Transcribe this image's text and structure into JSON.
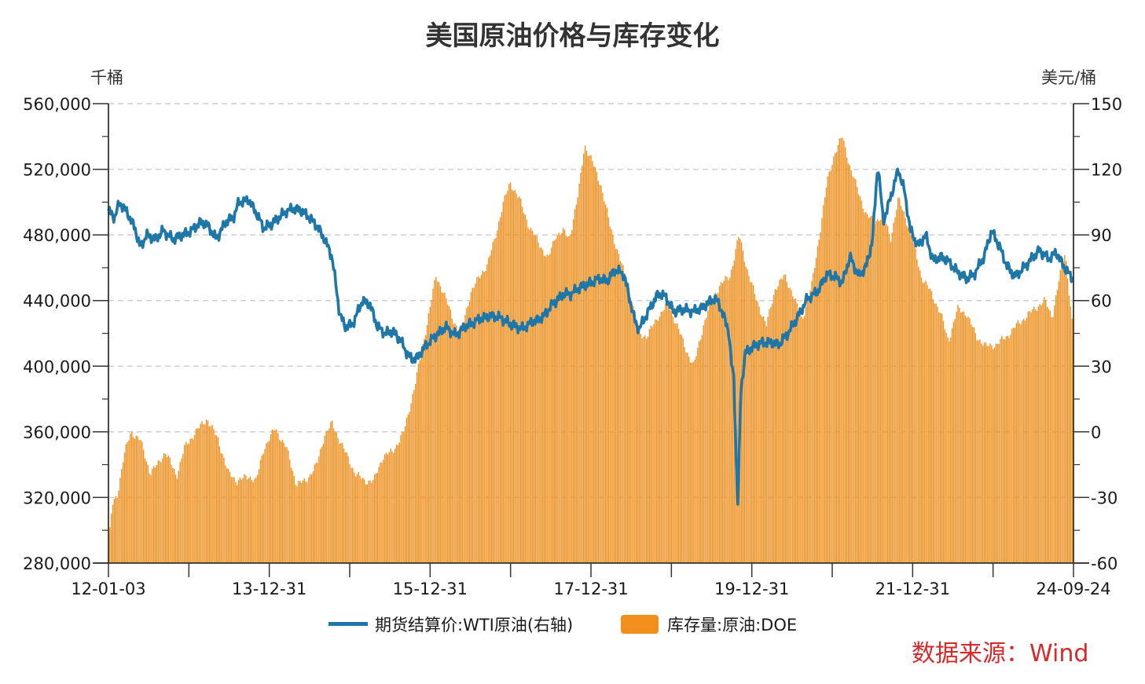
{
  "chart_data": {
    "type": "bar+line",
    "title": "美国原油价格与库存变化",
    "left_unit": "千桶",
    "right_unit": "美元/桶",
    "left_axis": {
      "min": 280000,
      "max": 560000,
      "ticks": [
        "560,000",
        "520,000",
        "480,000",
        "440,000",
        "400,000",
        "360,000",
        "320,000",
        "280,000"
      ]
    },
    "right_axis": {
      "min": -60,
      "max": 150,
      "ticks": [
        "150",
        "120",
        "90",
        "60",
        "30",
        "0",
        "-30",
        "-60"
      ]
    },
    "x_tick_labels": [
      "12-01-03",
      "13-12-31",
      "15-12-31",
      "17-12-31",
      "19-12-31",
      "21-12-31",
      "24-09-24"
    ],
    "x_range": [
      2012.0,
      2024.73
    ],
    "grid": true,
    "legend_position": "bottom",
    "series": [
      {
        "name": "库存量:原油:DOE",
        "kind": "bar",
        "axis": "left",
        "color": "#f28e1c",
        "points": [
          [
            2012.0,
            290000
          ],
          [
            2012.05,
            315000
          ],
          [
            2012.12,
            322000
          ],
          [
            2012.2,
            345000
          ],
          [
            2012.3,
            360000
          ],
          [
            2012.42,
            355000
          ],
          [
            2012.55,
            335000
          ],
          [
            2012.65,
            340000
          ],
          [
            2012.75,
            348000
          ],
          [
            2012.9,
            333000
          ],
          [
            2013.0,
            350000
          ],
          [
            2013.15,
            360000
          ],
          [
            2013.3,
            368000
          ],
          [
            2013.45,
            355000
          ],
          [
            2013.58,
            335000
          ],
          [
            2013.7,
            330000
          ],
          [
            2013.85,
            333000
          ],
          [
            2013.95,
            330000
          ],
          [
            2014.05,
            350000
          ],
          [
            2014.2,
            362000
          ],
          [
            2014.35,
            350000
          ],
          [
            2014.48,
            328000
          ],
          [
            2014.6,
            330000
          ],
          [
            2014.75,
            340000
          ],
          [
            2014.85,
            358000
          ],
          [
            2014.95,
            365000
          ],
          [
            2015.1,
            350000
          ],
          [
            2015.25,
            335000
          ],
          [
            2015.38,
            330000
          ],
          [
            2015.5,
            330000
          ],
          [
            2015.62,
            345000
          ],
          [
            2015.75,
            348000
          ],
          [
            2015.9,
            360000
          ],
          [
            2016.05,
            390000
          ],
          [
            2016.2,
            425000
          ],
          [
            2016.32,
            455000
          ],
          [
            2016.42,
            445000
          ],
          [
            2016.55,
            428000
          ],
          [
            2016.65,
            420000
          ],
          [
            2016.78,
            445000
          ],
          [
            2016.9,
            455000
          ],
          [
            2017.0,
            462000
          ],
          [
            2017.1,
            478000
          ],
          [
            2017.2,
            498000
          ],
          [
            2017.3,
            512000
          ],
          [
            2017.42,
            502000
          ],
          [
            2017.55,
            485000
          ],
          [
            2017.68,
            475000
          ],
          [
            2017.8,
            465000
          ],
          [
            2017.9,
            480000
          ],
          [
            2018.0,
            482000
          ],
          [
            2018.08,
            478000
          ],
          [
            2018.2,
            505000
          ],
          [
            2018.28,
            535000
          ],
          [
            2018.38,
            525000
          ],
          [
            2018.5,
            510000
          ],
          [
            2018.62,
            485000
          ],
          [
            2018.75,
            465000
          ],
          [
            2018.88,
            445000
          ],
          [
            2019.0,
            420000
          ],
          [
            2019.1,
            418000
          ],
          [
            2019.25,
            430000
          ],
          [
            2019.38,
            438000
          ],
          [
            2019.5,
            425000
          ],
          [
            2019.62,
            410000
          ],
          [
            2019.72,
            400000
          ],
          [
            2019.85,
            425000
          ],
          [
            2019.95,
            440000
          ],
          [
            2020.08,
            450000
          ],
          [
            2020.2,
            455000
          ],
          [
            2020.32,
            480000
          ],
          [
            2020.42,
            460000
          ],
          [
            2020.55,
            440000
          ],
          [
            2020.68,
            425000
          ],
          [
            2020.8,
            448000
          ],
          [
            2020.92,
            455000
          ],
          [
            2021.02,
            445000
          ],
          [
            2021.15,
            428000
          ],
          [
            2021.28,
            450000
          ],
          [
            2021.38,
            480000
          ],
          [
            2021.48,
            512000
          ],
          [
            2021.58,
            530000
          ],
          [
            2021.68,
            540000
          ],
          [
            2021.78,
            522000
          ],
          [
            2021.9,
            505000
          ],
          [
            2022.0,
            492000
          ],
          [
            2022.1,
            488000
          ],
          [
            2022.22,
            492000
          ],
          [
            2022.32,
            478000
          ],
          [
            2022.42,
            502000
          ],
          [
            2022.52,
            490000
          ],
          [
            2022.62,
            475000
          ],
          [
            2022.72,
            455000
          ],
          [
            2022.85,
            445000
          ],
          [
            2022.98,
            432000
          ],
          [
            2023.08,
            415000
          ],
          [
            2023.2,
            435000
          ],
          [
            2023.32,
            432000
          ],
          [
            2023.45,
            418000
          ],
          [
            2023.58,
            412000
          ],
          [
            2023.7,
            413000
          ],
          [
            2023.85,
            418000
          ],
          [
            2023.98,
            425000
          ],
          [
            2024.1,
            430000
          ],
          [
            2024.22,
            435000
          ],
          [
            2024.35,
            440000
          ],
          [
            2024.45,
            430000
          ],
          [
            2024.55,
            455000
          ],
          [
            2024.62,
            470000
          ],
          [
            2024.73,
            418000
          ]
        ]
      },
      {
        "name": "期货结算价:WTI原油(右轴)",
        "kind": "line",
        "axis": "right",
        "color": "#1f77a8",
        "points": [
          [
            2012.0,
            101
          ],
          [
            2012.08,
            98
          ],
          [
            2012.15,
            105
          ],
          [
            2012.25,
            100
          ],
          [
            2012.35,
            93
          ],
          [
            2012.42,
            84
          ],
          [
            2012.5,
            90
          ],
          [
            2012.62,
            88
          ],
          [
            2012.72,
            92
          ],
          [
            2012.85,
            88
          ],
          [
            2012.98,
            90
          ],
          [
            2013.1,
            92
          ],
          [
            2013.22,
            96
          ],
          [
            2013.32,
            94
          ],
          [
            2013.42,
            88
          ],
          [
            2013.55,
            96
          ],
          [
            2013.65,
            98
          ],
          [
            2013.72,
            105
          ],
          [
            2013.85,
            106
          ],
          [
            2013.95,
            100
          ],
          [
            2014.05,
            93
          ],
          [
            2014.15,
            95
          ],
          [
            2014.25,
            98
          ],
          [
            2014.35,
            101
          ],
          [
            2014.45,
            102
          ],
          [
            2014.55,
            101
          ],
          [
            2014.65,
            98
          ],
          [
            2014.75,
            94
          ],
          [
            2014.85,
            88
          ],
          [
            2014.95,
            80
          ],
          [
            2015.05,
            54
          ],
          [
            2015.12,
            48
          ],
          [
            2015.22,
            49
          ],
          [
            2015.35,
            60
          ],
          [
            2015.45,
            58
          ],
          [
            2015.55,
            48
          ],
          [
            2015.65,
            45
          ],
          [
            2015.75,
            46
          ],
          [
            2015.85,
            42
          ],
          [
            2015.92,
            37
          ],
          [
            2016.0,
            33
          ],
          [
            2016.08,
            34
          ],
          [
            2016.2,
            40
          ],
          [
            2016.32,
            44
          ],
          [
            2016.45,
            48
          ],
          [
            2016.58,
            44
          ],
          [
            2016.7,
            48
          ],
          [
            2016.82,
            50
          ],
          [
            2016.92,
            52
          ],
          [
            2017.05,
            53
          ],
          [
            2017.18,
            52
          ],
          [
            2017.32,
            49
          ],
          [
            2017.45,
            47
          ],
          [
            2017.58,
            50
          ],
          [
            2017.72,
            52
          ],
          [
            2017.85,
            58
          ],
          [
            2018.0,
            63
          ],
          [
            2018.1,
            63
          ],
          [
            2018.22,
            66
          ],
          [
            2018.35,
            68
          ],
          [
            2018.48,
            70
          ],
          [
            2018.58,
            69
          ],
          [
            2018.68,
            74
          ],
          [
            2018.8,
            72
          ],
          [
            2018.88,
            60
          ],
          [
            2018.95,
            50
          ],
          [
            2019.0,
            47
          ],
          [
            2019.12,
            55
          ],
          [
            2019.25,
            63
          ],
          [
            2019.35,
            62
          ],
          [
            2019.45,
            55
          ],
          [
            2019.58,
            56
          ],
          [
            2019.72,
            55
          ],
          [
            2019.85,
            57
          ],
          [
            2019.98,
            61
          ],
          [
            2020.05,
            59
          ],
          [
            2020.12,
            52
          ],
          [
            2020.18,
            47
          ],
          [
            2020.22,
            30
          ],
          [
            2020.25,
            25
          ],
          [
            2020.3,
            -37
          ],
          [
            2020.34,
            18
          ],
          [
            2020.4,
            36
          ],
          [
            2020.55,
            40
          ],
          [
            2020.7,
            41
          ],
          [
            2020.85,
            40
          ],
          [
            2020.98,
            46
          ],
          [
            2021.1,
            53
          ],
          [
            2021.22,
            61
          ],
          [
            2021.35,
            64
          ],
          [
            2021.48,
            72
          ],
          [
            2021.58,
            71
          ],
          [
            2021.68,
            68
          ],
          [
            2021.78,
            80
          ],
          [
            2021.9,
            71
          ],
          [
            2022.0,
            76
          ],
          [
            2022.08,
            88
          ],
          [
            2022.15,
            123
          ],
          [
            2022.22,
            96
          ],
          [
            2022.3,
            105
          ],
          [
            2022.42,
            120
          ],
          [
            2022.5,
            110
          ],
          [
            2022.58,
            92
          ],
          [
            2022.68,
            85
          ],
          [
            2022.78,
            90
          ],
          [
            2022.88,
            78
          ],
          [
            2022.98,
            80
          ],
          [
            2023.08,
            78
          ],
          [
            2023.2,
            73
          ],
          [
            2023.32,
            70
          ],
          [
            2023.42,
            72
          ],
          [
            2023.55,
            80
          ],
          [
            2023.65,
            92
          ],
          [
            2023.75,
            85
          ],
          [
            2023.85,
            76
          ],
          [
            2023.95,
            71
          ],
          [
            2024.05,
            74
          ],
          [
            2024.15,
            78
          ],
          [
            2024.28,
            83
          ],
          [
            2024.4,
            79
          ],
          [
            2024.5,
            82
          ],
          [
            2024.58,
            77
          ],
          [
            2024.65,
            73
          ],
          [
            2024.73,
            70
          ]
        ]
      }
    ],
    "source": "数据来源：Wind"
  }
}
